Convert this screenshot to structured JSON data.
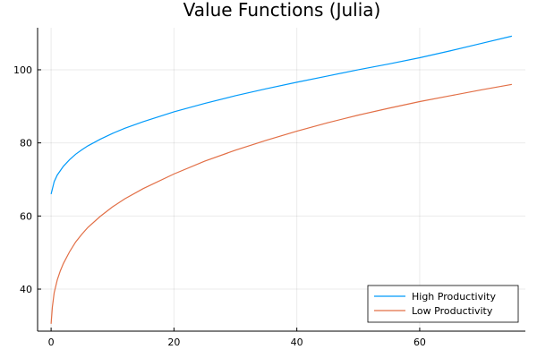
{
  "chart_data": {
    "type": "line",
    "title": "Value Functions (Julia)",
    "xlabel": "",
    "ylabel": "",
    "xlim": [
      -2.2,
      77.2
    ],
    "ylim": [
      28.5,
      111.5
    ],
    "xticks": [
      0,
      20,
      40,
      60
    ],
    "yticks": [
      40,
      60,
      80,
      100
    ],
    "grid": true,
    "legend_position": "bottom-right",
    "series": [
      {
        "name": "High Productivity",
        "color": "#009AFA",
        "x": [
          0,
          0.5,
          1,
          2,
          3,
          4,
          5,
          6,
          8,
          10,
          12,
          15,
          20,
          25,
          30,
          35,
          40,
          45,
          50,
          55,
          60,
          65,
          70,
          75
        ],
        "y": [
          66,
          69.4,
          71.2,
          73.6,
          75.4,
          76.9,
          78.1,
          79.2,
          81.0,
          82.6,
          84.0,
          85.8,
          88.5,
          90.8,
          92.9,
          94.8,
          96.6,
          98.3,
          100.0,
          101.6,
          103.3,
          105.2,
          107.2,
          109.2
        ]
      },
      {
        "name": "Low Productivity",
        "color": "#E26F46",
        "x": [
          0,
          0.2,
          0.5,
          1,
          1.5,
          2,
          3,
          4,
          5,
          6,
          8,
          10,
          12,
          15,
          20,
          25,
          30,
          35,
          40,
          45,
          50,
          55,
          60,
          65,
          70,
          75
        ],
        "y": [
          30.5,
          35,
          39,
          42.5,
          45.0,
          47.0,
          50.2,
          52.9,
          55.0,
          56.9,
          59.9,
          62.5,
          64.7,
          67.5,
          71.5,
          75.0,
          78.0,
          80.7,
          83.2,
          85.5,
          87.6,
          89.5,
          91.3,
          92.9,
          94.5,
          96.0
        ]
      }
    ]
  }
}
